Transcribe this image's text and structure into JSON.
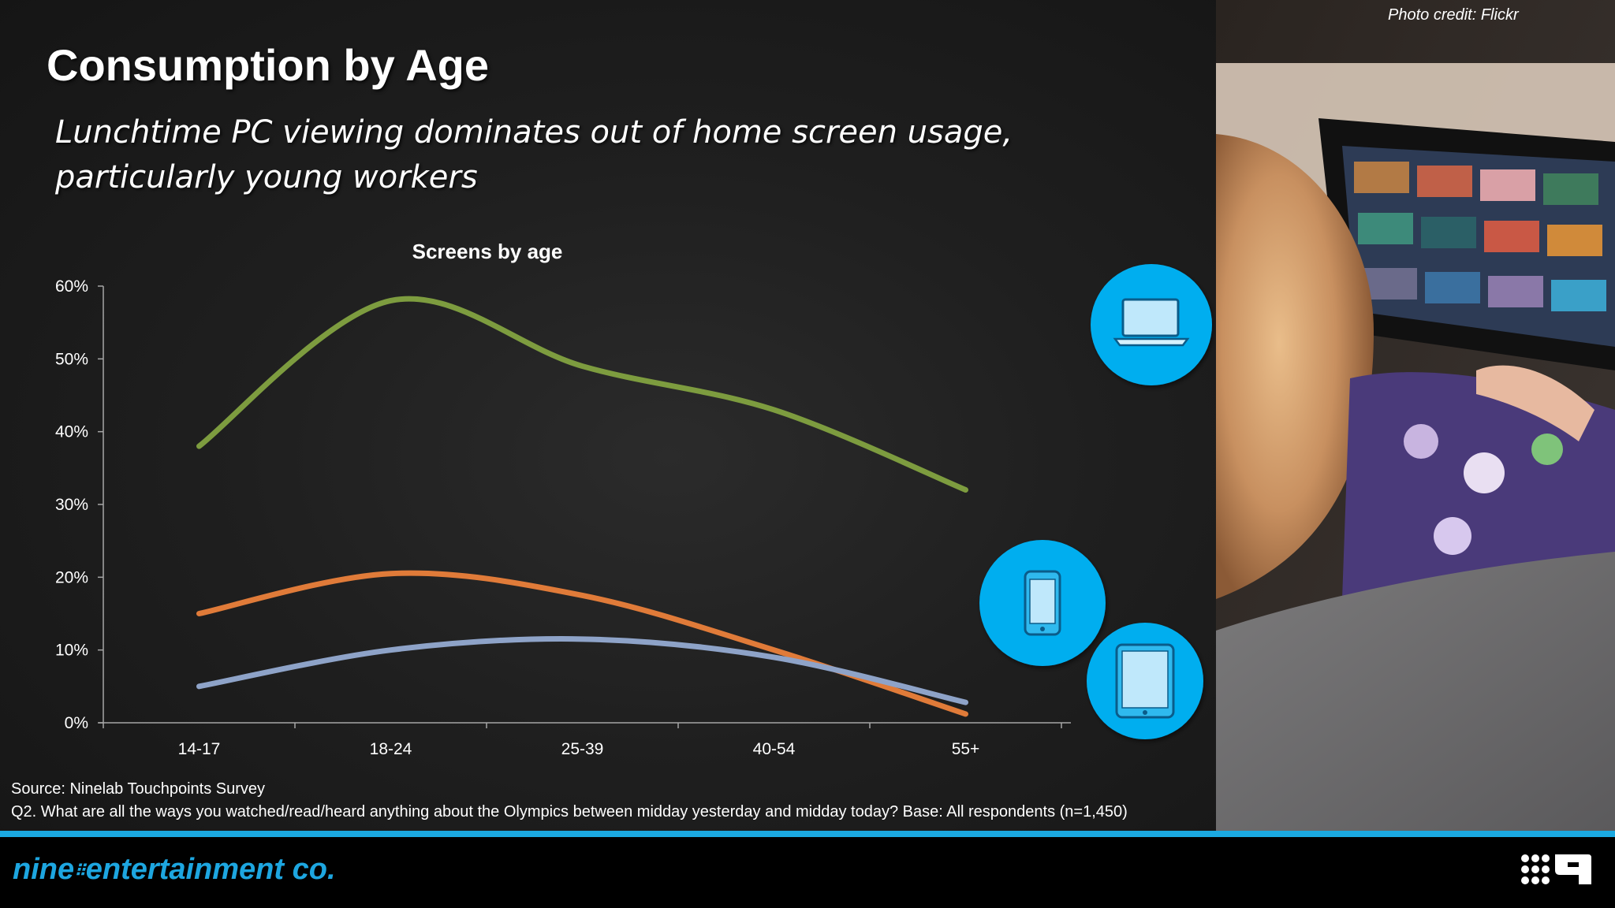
{
  "slide": {
    "title": "Consumption by Age",
    "subtitle": "Lunchtime PC viewing dominates out of home screen usage, particularly young workers",
    "photo_credit": "Photo credit: Flickr",
    "source": "Source: Ninelab Touchpoints Survey",
    "question": "Q2. What are all the ways you watched/read/heard anything about the Olympics between midday yesterday and midday today? Base: All respondents (n=1,450)"
  },
  "footer": {
    "logo_prefix": "nine",
    "logo_suffix": "entertainment co."
  },
  "icons": [
    "laptop-icon",
    "phone-icon",
    "tablet-icon"
  ],
  "colors": {
    "laptop": "#7d9c3f",
    "phone": "#e07b39",
    "tablet": "#8ea3c8",
    "icon_circle": "#00aeef",
    "accent": "#1ba9e1"
  },
  "chart_data": {
    "type": "line",
    "title": "Screens by age",
    "categories": [
      "14-17",
      "18-24",
      "25-39",
      "40-54",
      "55+"
    ],
    "series": [
      {
        "values": [
          38,
          58,
          49,
          43,
          32
        ]
      },
      {
        "values": [
          15,
          20.5,
          17.5,
          10,
          1.2
        ]
      },
      {
        "values": [
          5,
          10,
          11.5,
          9,
          2.8
        ]
      }
    ],
    "yticks": [
      "0%",
      "10%",
      "20%",
      "30%",
      "40%",
      "50%",
      "60%"
    ],
    "ylim": [
      0,
      60
    ],
    "grid": false,
    "legend": "none"
  }
}
